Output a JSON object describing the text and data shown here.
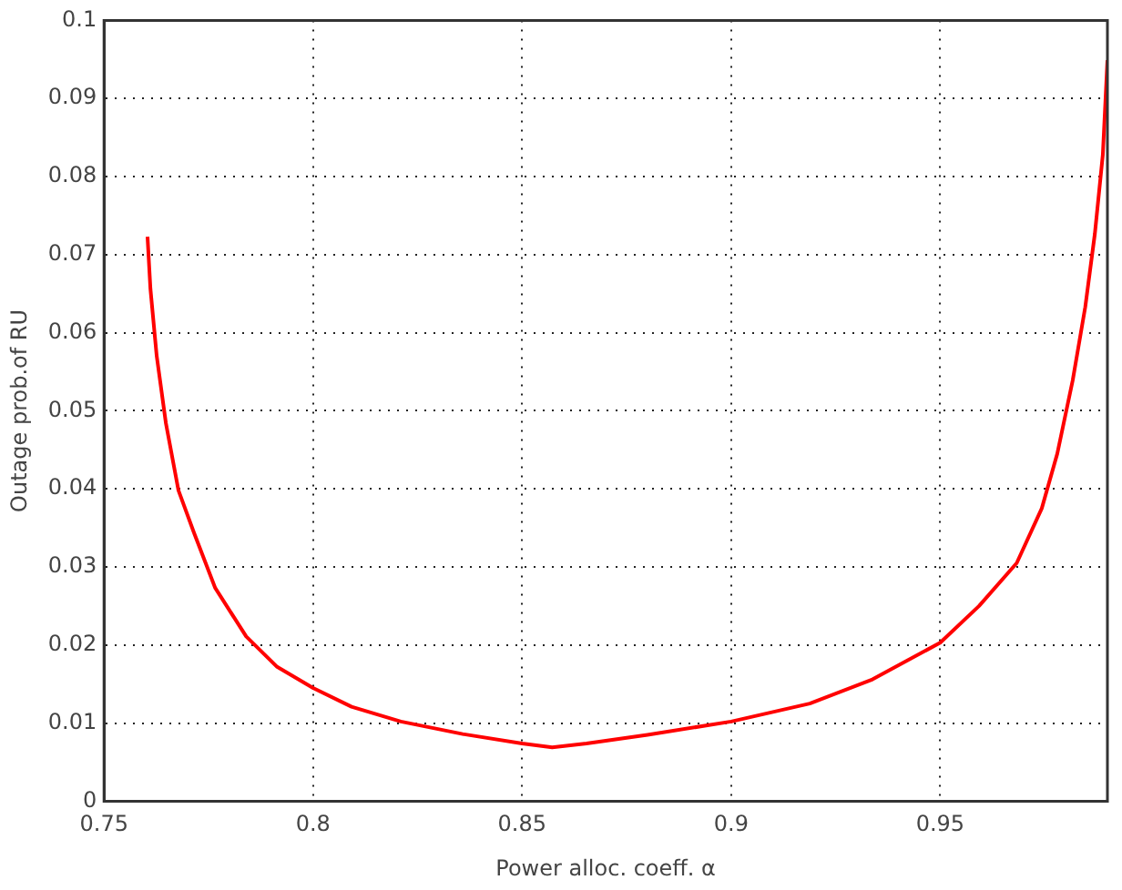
{
  "chart_data": {
    "type": "line",
    "xlabel": "Power alloc. coeff. α",
    "ylabel": "Outage prob.of RU",
    "x": [
      0.7604,
      0.7611,
      0.7626,
      0.7648,
      0.7678,
      0.7715,
      0.7766,
      0.784,
      0.7914,
      0.8,
      0.8092,
      0.821,
      0.8358,
      0.85,
      0.8572,
      0.8654,
      0.88,
      0.9,
      0.9188,
      0.9338,
      0.95,
      0.9593,
      0.9683,
      0.9743,
      0.978,
      0.9817,
      0.9847,
      0.987,
      0.9889,
      0.99
    ],
    "series": [
      {
        "color": "#ff0000",
        "values": [
          0.0723,
          0.0656,
          0.057,
          0.0484,
          0.0398,
          0.0344,
          0.0273,
          0.0211,
          0.0172,
          0.0145,
          0.0121,
          0.0102,
          0.0086,
          0.0074,
          0.0069,
          0.0074,
          0.0085,
          0.0102,
          0.0125,
          0.0156,
          0.0203,
          0.025,
          0.0305,
          0.0375,
          0.0445,
          0.0539,
          0.0633,
          0.0727,
          0.0828,
          0.0949
        ]
      }
    ],
    "xlim": [
      0.75,
      0.99
    ],
    "xticks": [
      0.75,
      0.8,
      0.85,
      0.9,
      0.95
    ],
    "ylim": [
      0,
      0.1
    ],
    "yticks": [
      0,
      0.01,
      0.02,
      0.03,
      0.04,
      0.05,
      0.06,
      0.07,
      0.08,
      0.09,
      0.1
    ],
    "grid": true,
    "legend": false,
    "marker": "none",
    "line_style": "solid"
  }
}
